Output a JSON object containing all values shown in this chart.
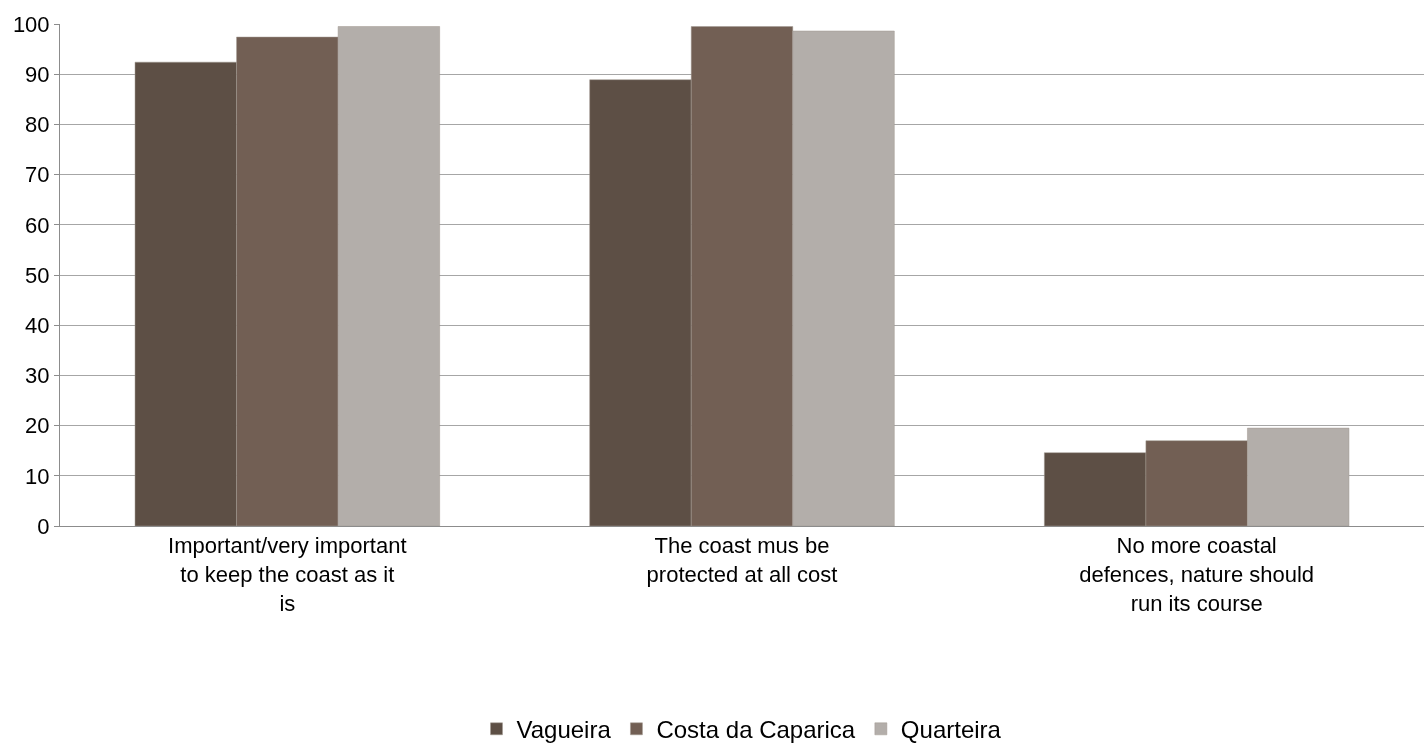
{
  "chart_data": {
    "type": "bar",
    "categories": [
      "Important/very important to keep the coast as it is",
      "The coast mus be protected at all cost",
      "No more coastal defences, nature should run its course"
    ],
    "series": [
      {
        "name": "Vagueira",
        "color": "#5d4f45",
        "values": [
          92.4,
          88.9,
          14.6
        ]
      },
      {
        "name": "Costa da Caparica",
        "color": "#725f54",
        "values": [
          97.4,
          99.5,
          17.0
        ]
      },
      {
        "name": "Quarteira",
        "color": "#b3aeaa",
        "values": [
          99.5,
          98.6,
          19.5
        ]
      }
    ],
    "ylim": [
      0,
      100
    ],
    "yticks": [
      0,
      10,
      20,
      30,
      40,
      50,
      60,
      70,
      80,
      90,
      100
    ],
    "grid": "y",
    "legend": "bottom"
  }
}
